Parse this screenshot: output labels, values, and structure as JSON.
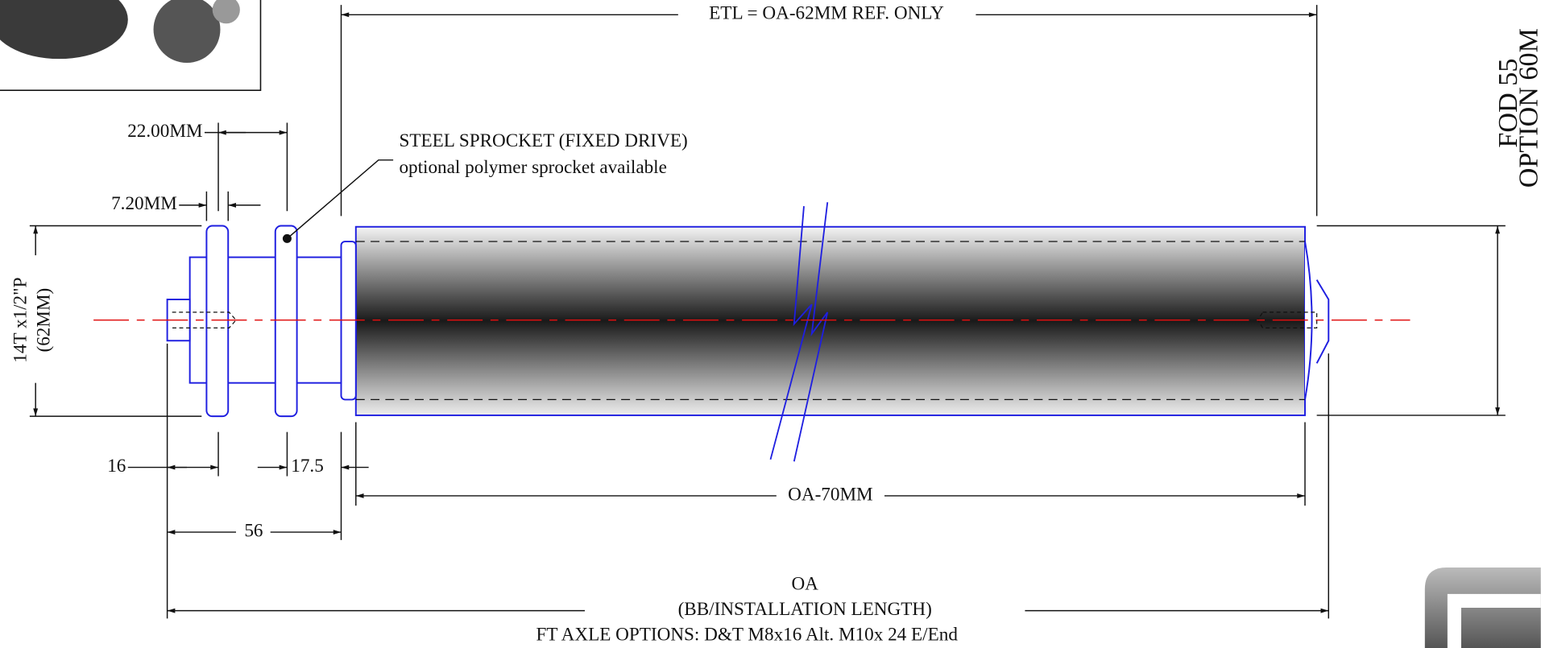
{
  "header": {
    "etl": "ETL = OA-62MM REF. ONLY",
    "fod": "FOD 55",
    "option": "OPTION 60M"
  },
  "callouts": {
    "sprocket_title": "STEEL SPROCKET (FIXED DRIVE)",
    "sprocket_note": "optional polymer sprocket available"
  },
  "dimensions": {
    "sprocket_spacing": "22.00MM",
    "sprocket_width": "7.20MM",
    "pitch": "14T x1/2\"P",
    "pitch_diameter": "(62MM)",
    "stub": "16",
    "shaft_step": "17.5",
    "shaft_length": "56",
    "tube_length": "OA-70MM"
  },
  "footer": {
    "oa": "OA",
    "oa_note": "(BB/INSTALLATION LENGTH)",
    "axle_options": "FT AXLE OPTIONS: D&T M8x16 Alt. M10x 24 E/End"
  }
}
